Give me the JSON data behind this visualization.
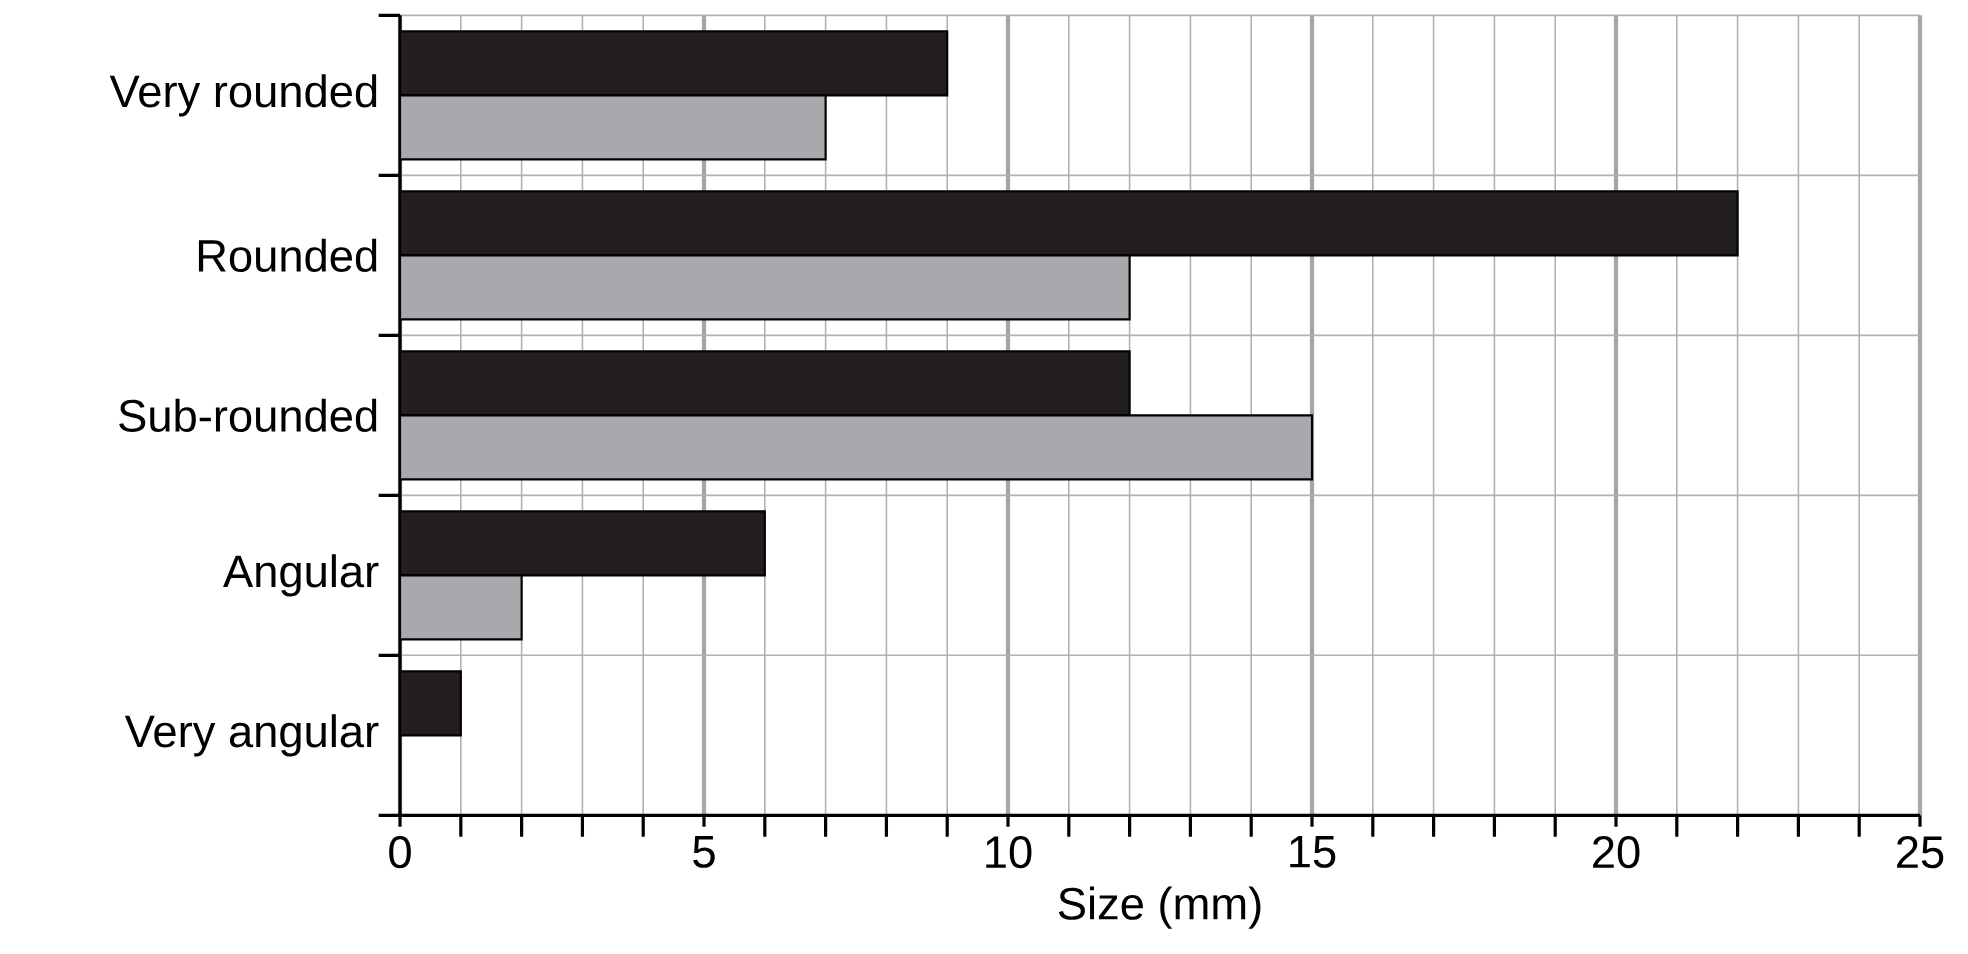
{
  "chart_data": {
    "type": "bar",
    "orientation": "horizontal",
    "xlabel": "Size (mm)",
    "categories": [
      "Very rounded",
      "Rounded",
      "Sub-rounded",
      "Angular",
      "Very angular"
    ],
    "series": [
      {
        "color": "#231f20",
        "values": [
          9,
          22,
          12,
          6,
          1
        ]
      },
      {
        "color": "#a7a9ac",
        "values": [
          7,
          12,
          15,
          2,
          null
        ]
      }
    ],
    "xlim": [
      0,
      25
    ],
    "xticks": [
      0,
      5,
      10,
      15,
      20,
      25
    ],
    "grid": true
  }
}
